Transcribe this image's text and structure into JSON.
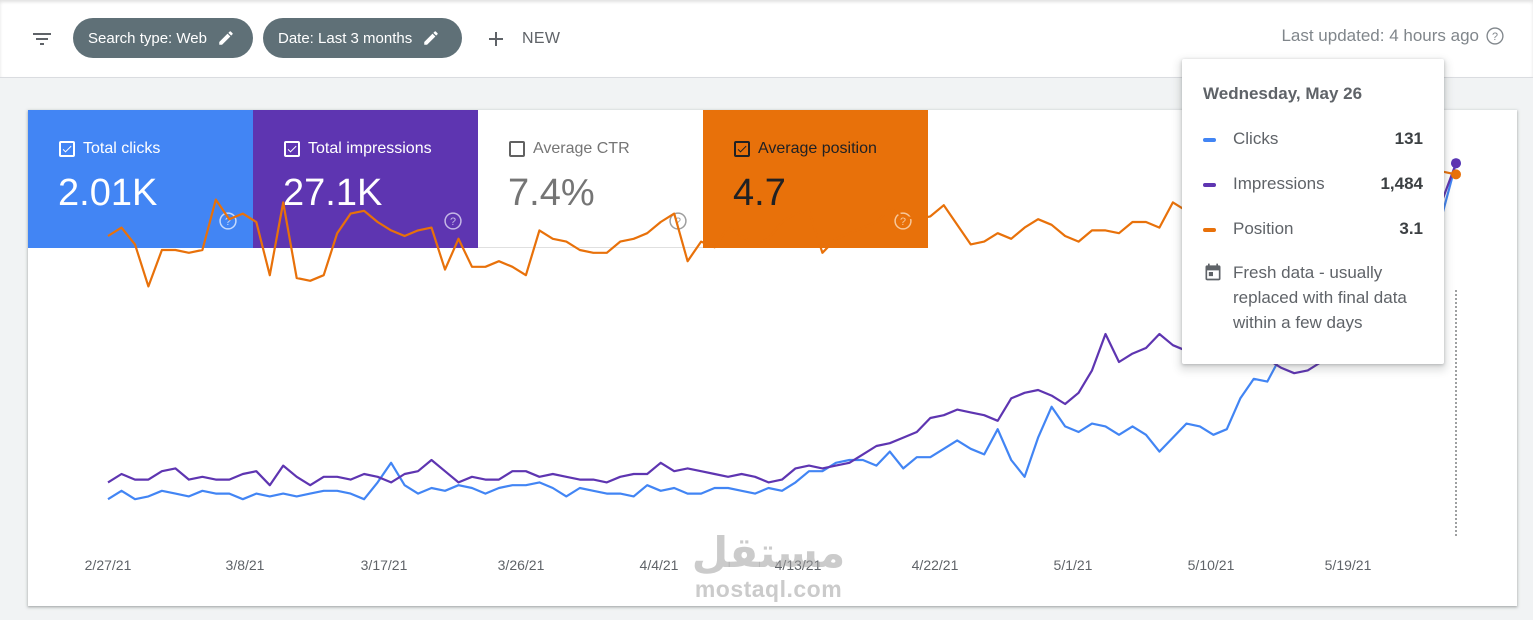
{
  "filters": {
    "search_type": "Search type: Web",
    "date": "Date: Last 3 months",
    "new_label": "NEW",
    "last_updated": "Last updated: 4 hours ago"
  },
  "metrics": [
    {
      "label": "Total clicks",
      "value": "2.01K",
      "checked": true,
      "color": "#4285f4"
    },
    {
      "label": "Total impressions",
      "value": "27.1K",
      "checked": true,
      "color": "#5e35b1"
    },
    {
      "label": "Average CTR",
      "value": "7.4%",
      "checked": false,
      "color": "#ffffff"
    },
    {
      "label": "Average position",
      "value": "4.7",
      "checked": true,
      "color": "#e8710a"
    }
  ],
  "tooltip": {
    "date": "Wednesday, May 26",
    "rows": [
      {
        "name": "Clicks",
        "value": "131",
        "color": "#4285f4"
      },
      {
        "name": "Impressions",
        "value": "1,484",
        "color": "#5e35b1"
      },
      {
        "name": "Position",
        "value": "3.1",
        "color": "#e8710a"
      }
    ],
    "fresh_note": "Fresh data - usually replaced with final data within a few days"
  },
  "watermark": {
    "arabic": "مستقل",
    "latin": "mostaql.com"
  },
  "chart_data": {
    "type": "line",
    "x_tick_labels": [
      "2/27/21",
      "3/8/21",
      "3/17/21",
      "3/26/21",
      "4/4/21",
      "4/13/21",
      "4/22/21",
      "5/1/21",
      "5/10/21",
      "5/19/21"
    ],
    "x_start": "2021-02-24",
    "x_end": "2021-05-26",
    "grid": false,
    "series": [
      {
        "name": "Clicks",
        "color": "#4285f4",
        "values": [
          11,
          14,
          11,
          12,
          14,
          13,
          12,
          14,
          13,
          13,
          11,
          13,
          12,
          13,
          12,
          13,
          14,
          14,
          13,
          11,
          17,
          24,
          16,
          13,
          15,
          14,
          16,
          15,
          13,
          15,
          16,
          16,
          17,
          15,
          12,
          15,
          14,
          13,
          13,
          12,
          16,
          14,
          15,
          13,
          13,
          15,
          15,
          14,
          13,
          15,
          14,
          17,
          21,
          21,
          24,
          25,
          25,
          23,
          28,
          22,
          26,
          26,
          29,
          32,
          29,
          27,
          36,
          25,
          19,
          33,
          44,
          37,
          35,
          38,
          37,
          34,
          37,
          34,
          28,
          33,
          38,
          37,
          34,
          36,
          47,
          54,
          53,
          62,
          72,
          84,
          91,
          93,
          92,
          94,
          95,
          101,
          104,
          110,
          112,
          113,
          131
        ]
      },
      {
        "name": "Impressions",
        "color": "#5e35b1",
        "values": [
          17,
          20,
          18,
          18,
          21,
          22,
          18,
          19,
          18,
          18,
          20,
          21,
          16,
          23,
          19,
          16,
          19,
          19,
          18,
          20,
          19,
          17,
          20,
          21,
          25,
          21,
          17,
          19,
          18,
          18,
          21,
          21,
          19,
          20,
          19,
          18,
          18,
          17,
          19,
          20,
          20,
          24,
          21,
          22,
          21,
          20,
          19,
          20,
          19,
          17,
          18,
          22,
          23,
          22,
          23,
          24,
          27,
          30,
          31,
          33,
          35,
          40,
          41,
          43,
          42,
          41,
          39,
          47,
          49,
          50,
          48,
          45,
          49,
          57,
          70,
          60,
          63,
          65,
          70,
          66,
          64,
          66,
          68,
          66,
          65,
          63,
          61,
          58,
          56,
          57,
          60,
          65,
          69,
          82,
          93,
          96,
          95,
          98,
          104,
          118,
          131
        ]
      },
      {
        "name": "Position",
        "color": "#e8710a",
        "values": [
          105,
          108,
          102,
          87,
          100,
          100,
          99,
          100,
          118,
          111,
          113,
          110,
          91,
          117,
          90,
          89,
          91,
          106,
          113,
          114,
          110,
          107,
          105,
          107,
          108,
          93,
          104,
          94,
          94,
          96,
          94,
          91,
          107,
          104,
          103,
          100,
          99,
          99,
          103,
          104,
          106,
          110,
          113,
          96,
          103,
          101,
          108,
          105,
          102,
          104,
          110,
          113,
          114,
          99,
          104,
          106,
          108,
          110,
          115,
          112,
          111,
          112,
          116,
          109,
          102,
          103,
          106,
          104,
          108,
          111,
          109,
          105,
          103,
          107,
          107,
          106,
          110,
          110,
          108,
          117,
          114,
          112,
          115,
          112,
          109,
          110,
          109,
          113,
          115,
          118,
          120,
          123,
          121,
          117,
          124,
          127,
          130,
          131,
          129,
          128,
          127
        ]
      }
    ]
  }
}
